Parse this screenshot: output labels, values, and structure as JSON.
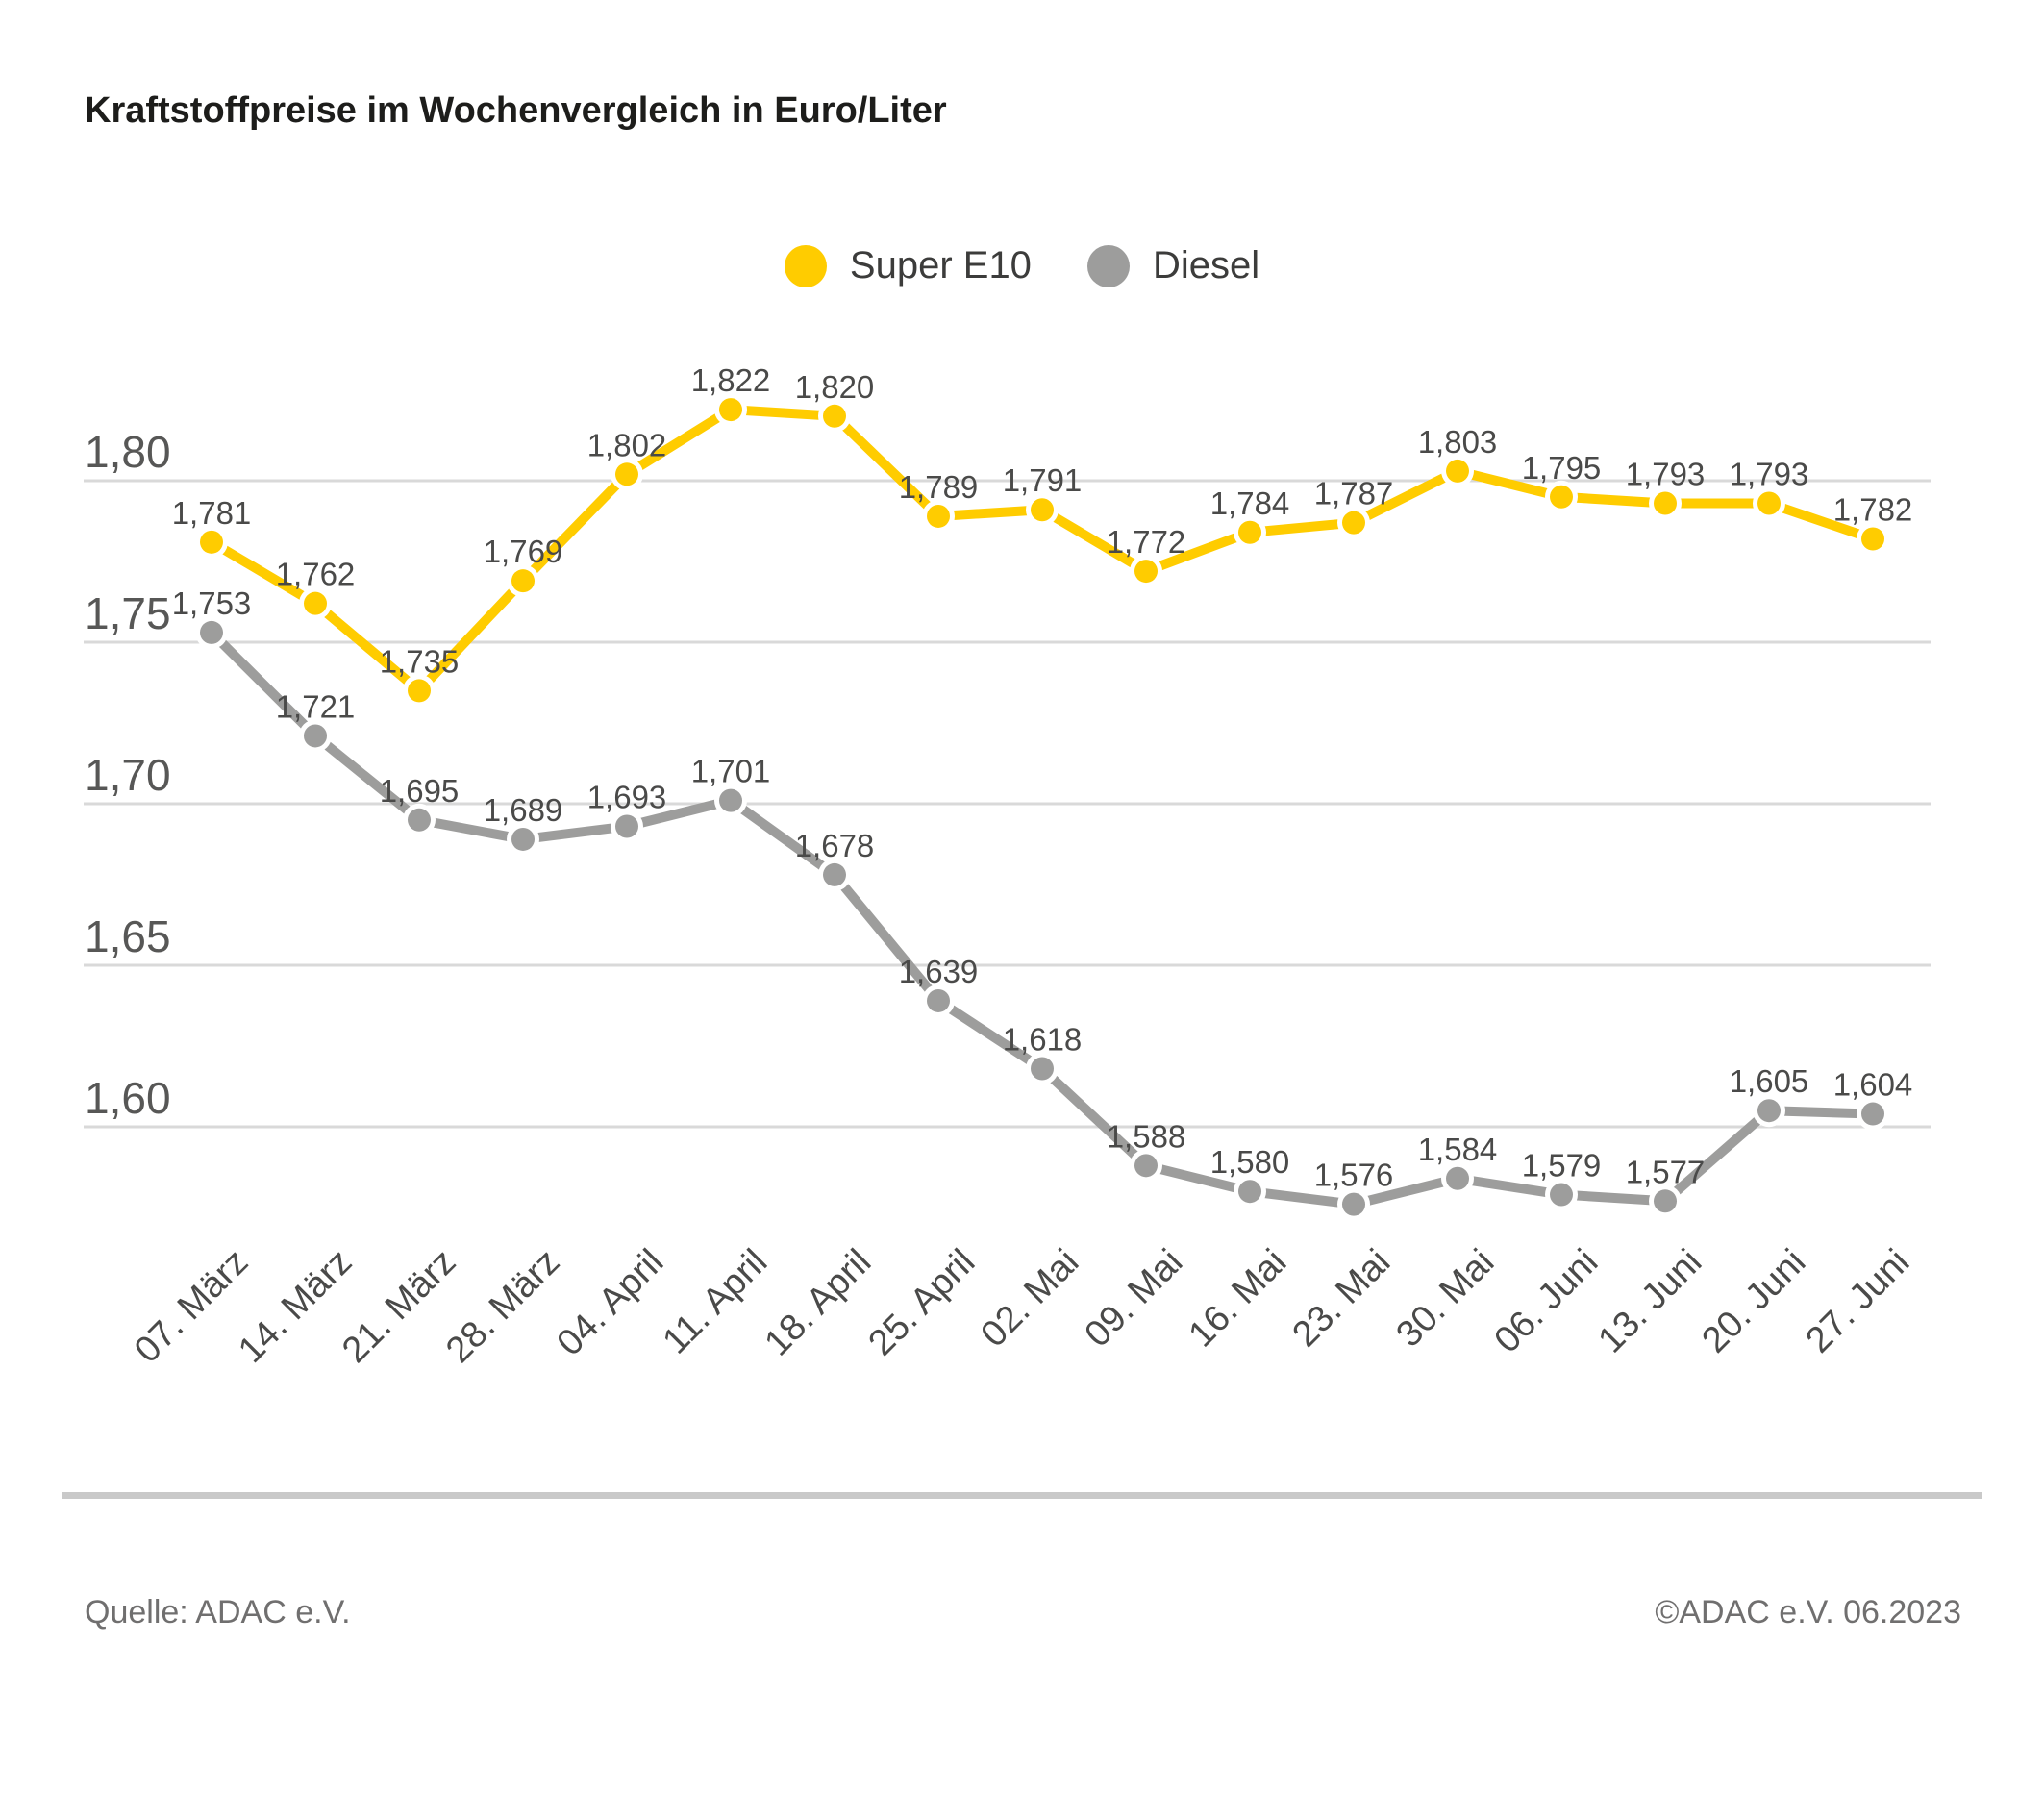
{
  "chart_data": {
    "type": "line",
    "title": "Kraftstoffpreise im Wochenvergleich in Euro/Liter",
    "categories": [
      "07. März",
      "14. März",
      "21. März",
      "28. März",
      "04. April",
      "11. April",
      "18. April",
      "25. April",
      "02. Mai",
      "09. Mai",
      "16. Mai",
      "23. Mai",
      "30. Mai",
      "06. Juni",
      "13. Juni",
      "20. Juni",
      "27. Juni"
    ],
    "series": [
      {
        "name": "Super E10",
        "color": "#FFCC00",
        "values": [
          1.781,
          1.762,
          1.735,
          1.769,
          1.802,
          1.822,
          1.82,
          1.789,
          1.791,
          1.772,
          1.784,
          1.787,
          1.803,
          1.795,
          1.793,
          1.793,
          1.782
        ]
      },
      {
        "name": "Diesel",
        "color": "#9D9D9C",
        "values": [
          1.753,
          1.721,
          1.695,
          1.689,
          1.693,
          1.701,
          1.678,
          1.639,
          1.618,
          1.588,
          1.58,
          1.576,
          1.584,
          1.579,
          1.577,
          1.605,
          1.604
        ]
      }
    ],
    "y_ticks": [
      1.8,
      1.75,
      1.7,
      1.65,
      1.6
    ],
    "ylim": [
      1.575,
      1.84
    ],
    "xlabel": "",
    "ylabel": "Euro/Liter",
    "grid": true,
    "legend_position": "top-center",
    "decimal_separator": ",",
    "value_label_decimals": 3,
    "axis_label_decimals": 2
  },
  "footer": {
    "source": "Quelle: ADAC e.V.",
    "copyright": "©ADAC e.V. 06.2023"
  },
  "colors": {
    "grid": "#D9D9D9",
    "axis_text": "#575756",
    "value_text": "#4A4A49",
    "title_text": "#1D1D1B",
    "footer_text": "#706F6F",
    "divider": "#C9C9C9",
    "background": "#FFFFFF"
  }
}
